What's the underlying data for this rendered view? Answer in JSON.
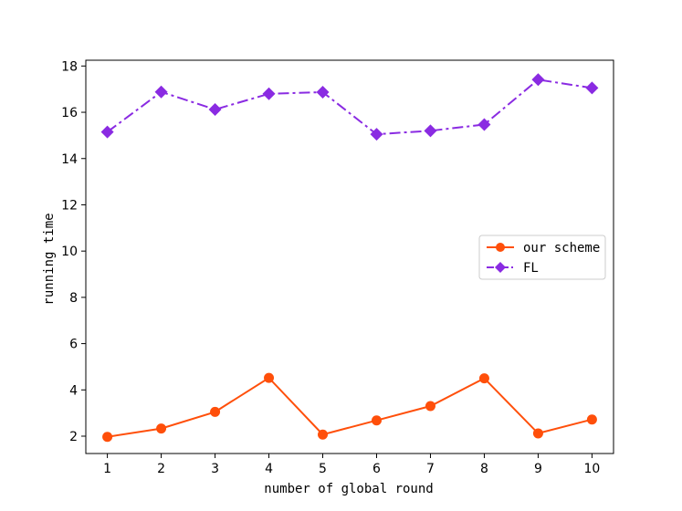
{
  "chart_data": {
    "type": "line",
    "title": "",
    "xlabel": "number of global round",
    "ylabel": "running time",
    "x": [
      1,
      2,
      3,
      4,
      5,
      6,
      7,
      8,
      9,
      10
    ],
    "xlim": [
      0.6,
      10.4
    ],
    "ylim": [
      1.25,
      18.25
    ],
    "xticks": [
      1,
      2,
      3,
      4,
      5,
      6,
      7,
      8,
      9,
      10
    ],
    "yticks": [
      2,
      4,
      6,
      8,
      10,
      12,
      14,
      16,
      18
    ],
    "grid": false,
    "legend_position": "center-right",
    "series": [
      {
        "name": "our scheme",
        "color": "#ff4f0a",
        "marker": "circle",
        "linestyle": "solid",
        "values": [
          1.97,
          2.33,
          3.05,
          4.52,
          2.07,
          2.68,
          3.3,
          4.5,
          2.12,
          2.72
        ]
      },
      {
        "name": "FL",
        "color": "#8a2be2",
        "marker": "diamond",
        "linestyle": "dashdot",
        "values": [
          15.15,
          16.88,
          16.12,
          16.8,
          16.87,
          15.05,
          15.2,
          15.47,
          17.41,
          17.05
        ]
      }
    ]
  }
}
